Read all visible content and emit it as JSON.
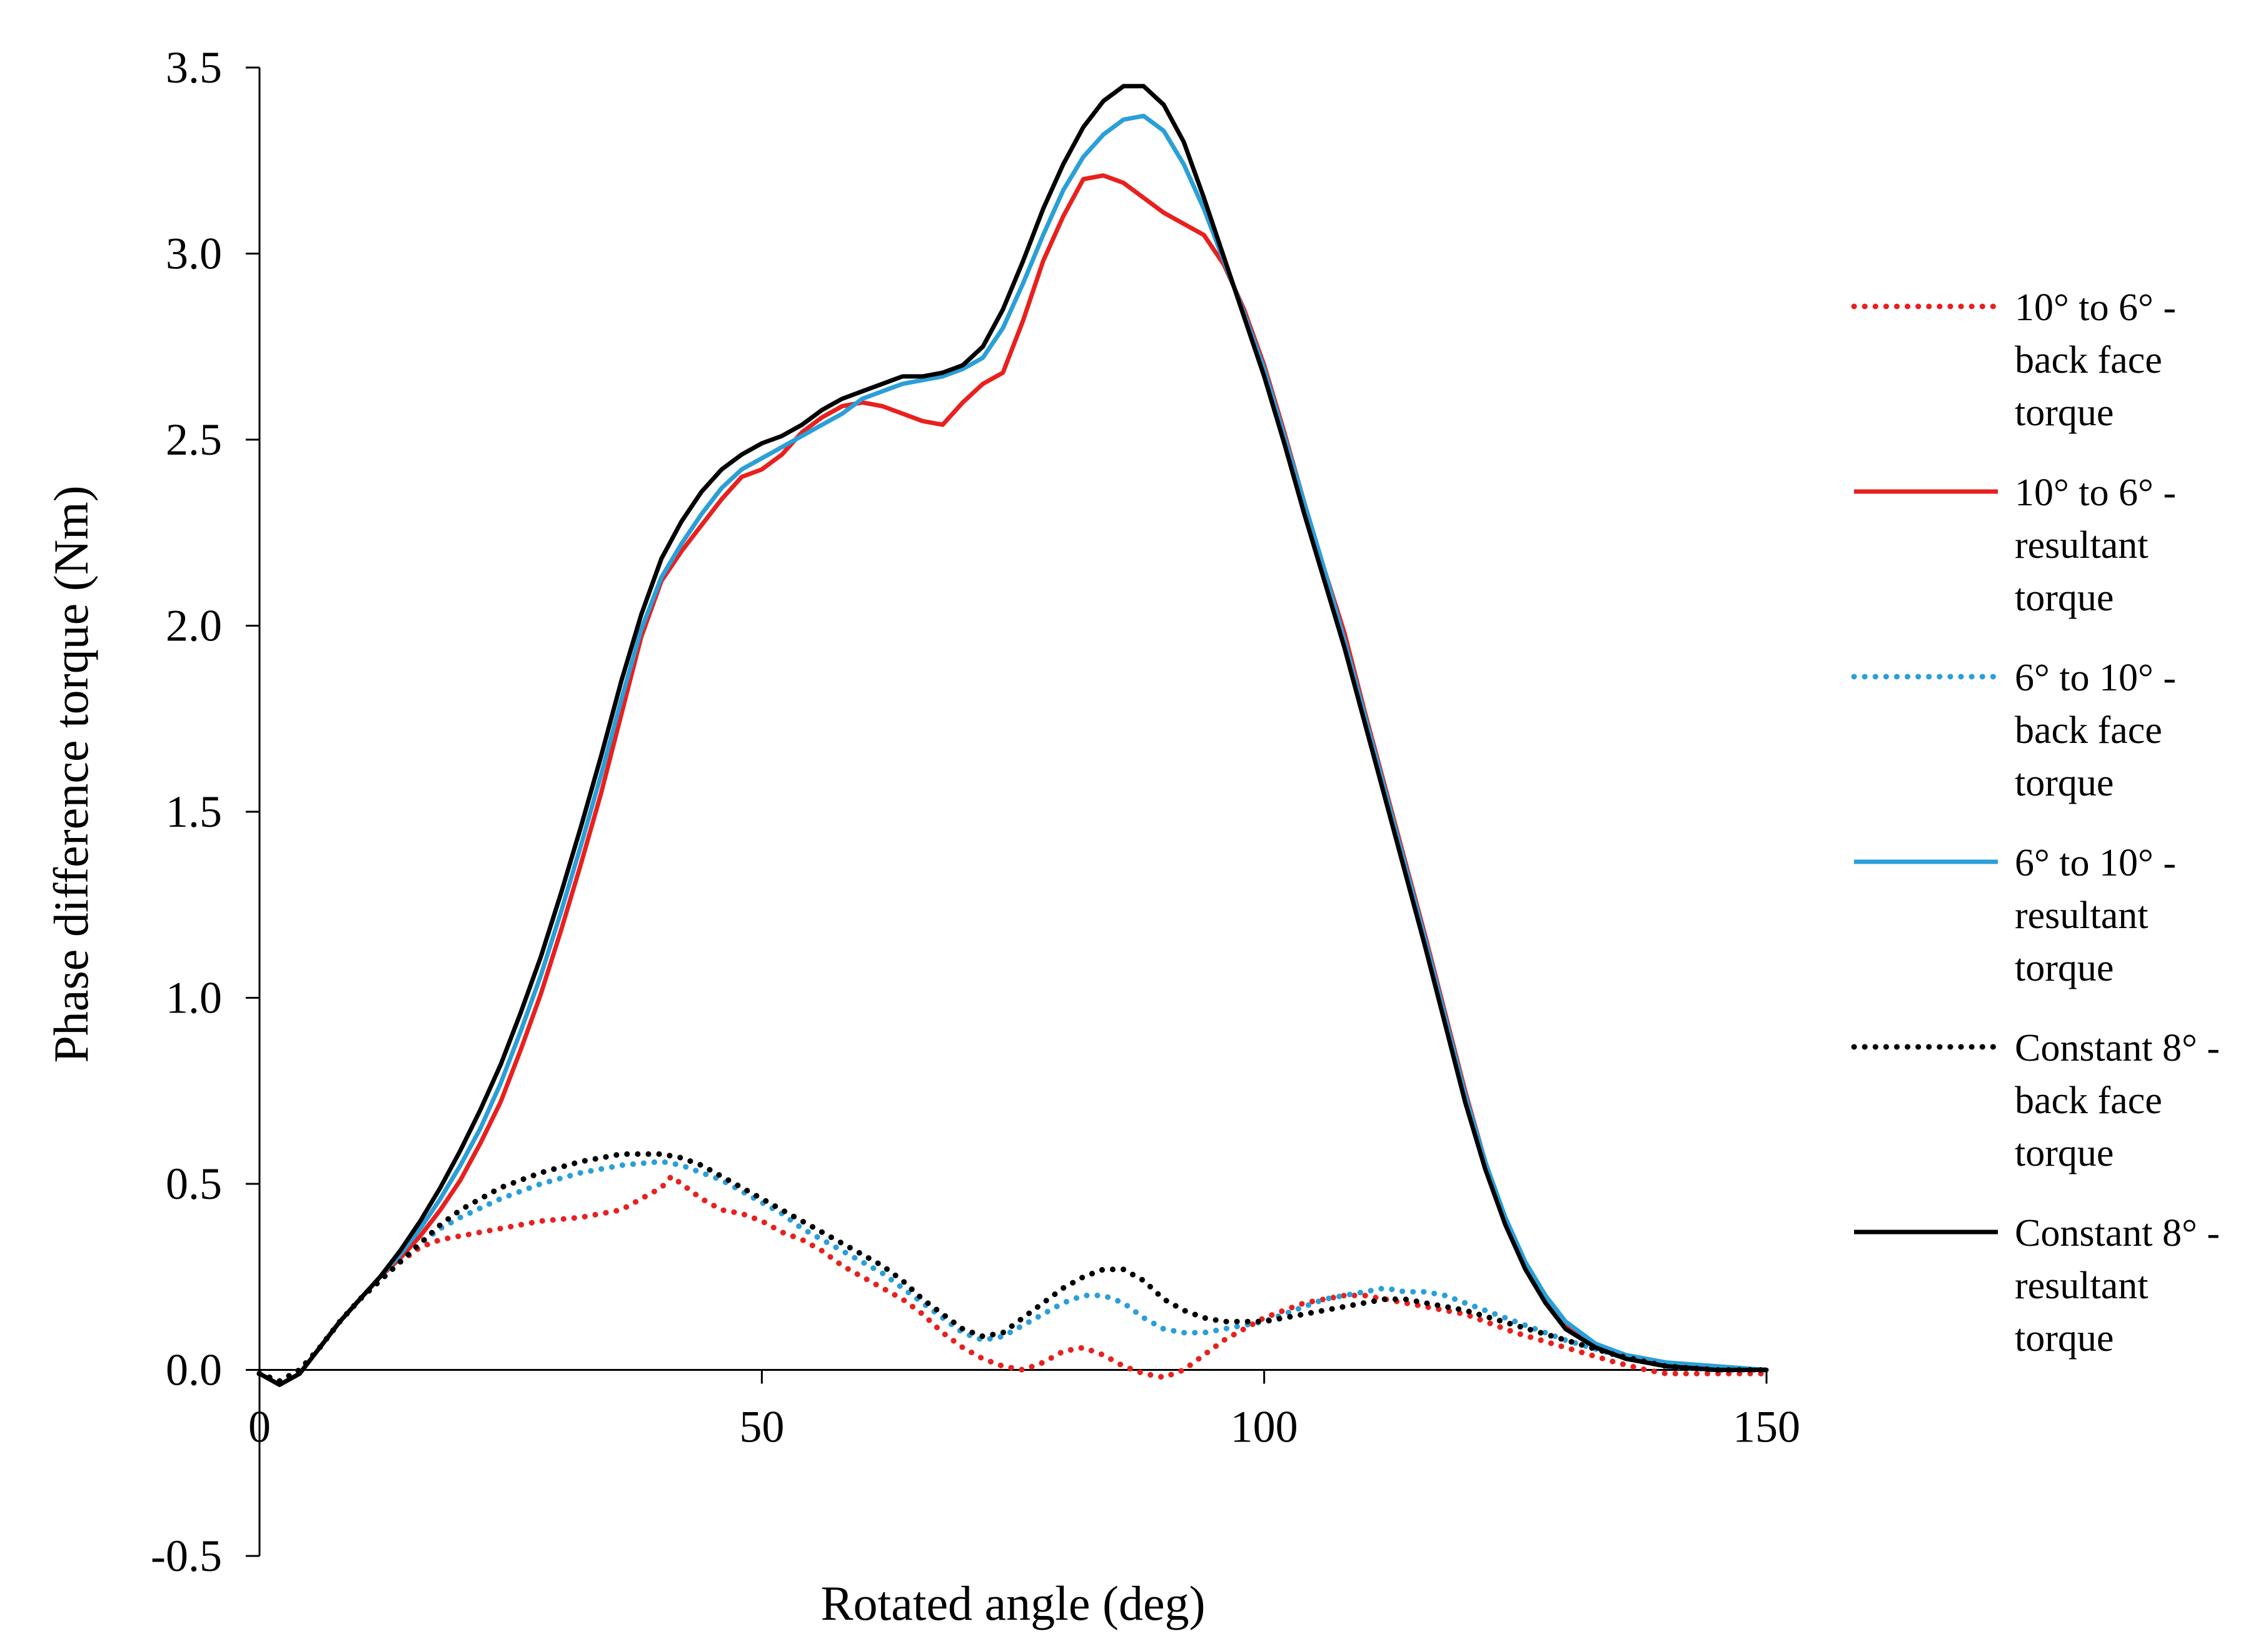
{
  "chart_data": {
    "type": "line",
    "title": "",
    "xlabel": "Rotated angle (deg)",
    "ylabel": "Phase difference torque (Nm)",
    "xlim": [
      0,
      150
    ],
    "ylim": [
      -0.5,
      3.5
    ],
    "xticks": [
      0,
      50,
      100,
      150
    ],
    "xtick_labels": [
      "0",
      "50",
      "100",
      "150"
    ],
    "yticks": [
      -0.5,
      0,
      0.5,
      1,
      1.5,
      2,
      2.5,
      3,
      3.5
    ],
    "ytick_labels": [
      "-0.5",
      "0.0",
      "0.5",
      "1.0",
      "1.5",
      "2.0",
      "2.5",
      "3.0",
      "3.5"
    ],
    "grid": false,
    "legend_position": "right",
    "series": [
      {
        "name": "10° to 6° - back face torque",
        "legend_lines": [
          "10° to 6° -",
          "back face",
          "torque"
        ],
        "color": "#e8201e",
        "style": "dotted",
        "x": [
          0,
          2,
          4,
          6,
          8,
          10,
          12,
          14,
          16,
          18,
          20,
          24,
          28,
          32,
          36,
          40,
          41,
          42,
          44,
          46,
          48,
          50,
          52,
          54,
          56,
          58,
          60,
          62,
          64,
          66,
          68,
          70,
          72,
          74,
          76,
          78,
          80,
          82,
          84,
          86,
          88,
          90,
          92,
          94,
          96,
          98,
          100,
          102,
          104,
          106,
          108,
          110,
          112,
          114,
          116,
          118,
          120,
          125,
          130,
          135,
          138,
          140,
          145,
          150
        ],
        "y": [
          -0.01,
          -0.03,
          0.0,
          0.06,
          0.13,
          0.19,
          0.24,
          0.29,
          0.33,
          0.35,
          0.36,
          0.38,
          0.4,
          0.41,
          0.43,
          0.49,
          0.52,
          0.5,
          0.46,
          0.43,
          0.42,
          0.4,
          0.37,
          0.35,
          0.32,
          0.28,
          0.25,
          0.22,
          0.19,
          0.15,
          0.1,
          0.06,
          0.03,
          0.01,
          0.0,
          0.02,
          0.05,
          0.06,
          0.04,
          0.01,
          -0.01,
          -0.02,
          0.0,
          0.04,
          0.08,
          0.11,
          0.14,
          0.16,
          0.18,
          0.19,
          0.2,
          0.2,
          0.19,
          0.18,
          0.17,
          0.16,
          0.15,
          0.1,
          0.06,
          0.02,
          0.0,
          -0.01,
          -0.01,
          -0.01
        ]
      },
      {
        "name": "10° to 6° - resultant torque",
        "legend_lines": [
          "10° to 6° -",
          "resultant",
          "torque"
        ],
        "color": "#e8201e",
        "style": "solid",
        "x": [
          0,
          2,
          4,
          6,
          8,
          10,
          12,
          14,
          16,
          18,
          20,
          22,
          24,
          26,
          28,
          30,
          32,
          34,
          36,
          38,
          40,
          42,
          44,
          46,
          48,
          50,
          52,
          54,
          56,
          58,
          60,
          62,
          64,
          66,
          68,
          70,
          72,
          74,
          76,
          78,
          80,
          82,
          84,
          86,
          88,
          90,
          92,
          94,
          96,
          98,
          100,
          102,
          104,
          106,
          108,
          110,
          112,
          114,
          116,
          118,
          120,
          122,
          124,
          126,
          128,
          130,
          133,
          136,
          140,
          145,
          150
        ],
        "y": [
          -0.01,
          -0.04,
          -0.01,
          0.06,
          0.13,
          0.19,
          0.25,
          0.3,
          0.36,
          0.43,
          0.51,
          0.61,
          0.72,
          0.86,
          1.01,
          1.18,
          1.36,
          1.55,
          1.76,
          1.97,
          2.12,
          2.2,
          2.27,
          2.34,
          2.4,
          2.42,
          2.46,
          2.52,
          2.56,
          2.59,
          2.6,
          2.59,
          2.57,
          2.55,
          2.54,
          2.6,
          2.65,
          2.68,
          2.82,
          2.98,
          3.1,
          3.2,
          3.21,
          3.19,
          3.15,
          3.11,
          3.08,
          3.05,
          2.97,
          2.85,
          2.7,
          2.52,
          2.33,
          2.15,
          1.98,
          1.77,
          1.57,
          1.37,
          1.17,
          0.96,
          0.75,
          0.56,
          0.4,
          0.28,
          0.19,
          0.12,
          0.06,
          0.03,
          0.01,
          0.0,
          0.0
        ]
      },
      {
        "name": "6° to 10° - back face torque",
        "legend_lines": [
          "6° to 10° -",
          "back face",
          "torque"
        ],
        "color": "#2a9fd8",
        "style": "dotted",
        "x": [
          0,
          2,
          4,
          6,
          8,
          10,
          12,
          14,
          16,
          18,
          20,
          24,
          28,
          32,
          36,
          40,
          42,
          44,
          46,
          48,
          50,
          52,
          54,
          56,
          58,
          60,
          62,
          64,
          66,
          68,
          70,
          72,
          74,
          76,
          78,
          80,
          82,
          84,
          86,
          88,
          90,
          92,
          94,
          96,
          98,
          100,
          102,
          104,
          106,
          108,
          110,
          112,
          114,
          116,
          118,
          120,
          125,
          130,
          135,
          140,
          145,
          150
        ],
        "y": [
          -0.01,
          -0.03,
          0.0,
          0.06,
          0.13,
          0.19,
          0.24,
          0.29,
          0.34,
          0.38,
          0.41,
          0.46,
          0.5,
          0.53,
          0.55,
          0.56,
          0.55,
          0.53,
          0.51,
          0.48,
          0.45,
          0.42,
          0.38,
          0.35,
          0.32,
          0.29,
          0.26,
          0.22,
          0.18,
          0.14,
          0.1,
          0.08,
          0.09,
          0.12,
          0.15,
          0.18,
          0.2,
          0.2,
          0.18,
          0.14,
          0.11,
          0.1,
          0.1,
          0.11,
          0.12,
          0.13,
          0.15,
          0.17,
          0.19,
          0.2,
          0.21,
          0.22,
          0.21,
          0.21,
          0.2,
          0.18,
          0.13,
          0.08,
          0.04,
          0.01,
          0.0,
          0.0
        ]
      },
      {
        "name": "6° to 10° - resultant torque",
        "legend_lines": [
          "6° to 10° -",
          "resultant",
          "torque"
        ],
        "color": "#2a9fd8",
        "style": "solid",
        "x": [
          0,
          2,
          4,
          6,
          8,
          10,
          12,
          14,
          16,
          18,
          20,
          22,
          24,
          26,
          28,
          30,
          32,
          34,
          36,
          38,
          40,
          42,
          44,
          46,
          48,
          50,
          52,
          54,
          56,
          58,
          60,
          62,
          64,
          66,
          68,
          70,
          72,
          74,
          76,
          78,
          80,
          82,
          84,
          86,
          88,
          90,
          92,
          94,
          96,
          98,
          100,
          102,
          104,
          106,
          108,
          110,
          112,
          114,
          116,
          118,
          120,
          122,
          124,
          126,
          128,
          130,
          133,
          136,
          140,
          145,
          150
        ],
        "y": [
          -0.01,
          -0.04,
          -0.01,
          0.06,
          0.13,
          0.19,
          0.25,
          0.31,
          0.38,
          0.46,
          0.55,
          0.65,
          0.77,
          0.91,
          1.06,
          1.23,
          1.41,
          1.6,
          1.8,
          1.99,
          2.13,
          2.22,
          2.3,
          2.37,
          2.42,
          2.45,
          2.48,
          2.51,
          2.54,
          2.57,
          2.61,
          2.63,
          2.65,
          2.66,
          2.67,
          2.69,
          2.72,
          2.8,
          2.92,
          3.05,
          3.17,
          3.26,
          3.32,
          3.36,
          3.37,
          3.33,
          3.24,
          3.12,
          2.98,
          2.84,
          2.69,
          2.51,
          2.33,
          2.15,
          1.96,
          1.76,
          1.56,
          1.36,
          1.16,
          0.95,
          0.74,
          0.56,
          0.41,
          0.29,
          0.2,
          0.13,
          0.07,
          0.04,
          0.02,
          0.01,
          0.0
        ]
      },
      {
        "name": "Constant 8° - back face torque",
        "legend_lines": [
          "Constant 8° -",
          "back face",
          "torque"
        ],
        "color": "#000000",
        "style": "dotted",
        "x": [
          0,
          2,
          4,
          6,
          8,
          10,
          12,
          14,
          16,
          18,
          20,
          24,
          28,
          32,
          36,
          40,
          42,
          44,
          46,
          48,
          50,
          52,
          54,
          56,
          58,
          60,
          62,
          64,
          66,
          68,
          70,
          72,
          74,
          76,
          78,
          80,
          82,
          84,
          86,
          88,
          90,
          92,
          94,
          96,
          98,
          100,
          102,
          104,
          106,
          108,
          110,
          112,
          114,
          116,
          118,
          120,
          125,
          130,
          135,
          140,
          145,
          150
        ],
        "y": [
          -0.01,
          -0.03,
          0.0,
          0.06,
          0.13,
          0.19,
          0.24,
          0.29,
          0.34,
          0.39,
          0.43,
          0.49,
          0.53,
          0.56,
          0.58,
          0.58,
          0.57,
          0.55,
          0.52,
          0.49,
          0.46,
          0.43,
          0.4,
          0.37,
          0.34,
          0.31,
          0.28,
          0.24,
          0.19,
          0.15,
          0.11,
          0.09,
          0.1,
          0.14,
          0.18,
          0.22,
          0.25,
          0.27,
          0.27,
          0.24,
          0.19,
          0.16,
          0.14,
          0.13,
          0.13,
          0.13,
          0.14,
          0.15,
          0.16,
          0.17,
          0.18,
          0.19,
          0.19,
          0.18,
          0.17,
          0.16,
          0.12,
          0.08,
          0.04,
          0.01,
          0.0,
          0.0
        ]
      },
      {
        "name": "Constant 8° - resultant torque",
        "legend_lines": [
          "Constant 8° -",
          "resultant",
          "torque"
        ],
        "color": "#000000",
        "style": "solid",
        "x": [
          0,
          2,
          4,
          6,
          8,
          10,
          12,
          14,
          16,
          18,
          20,
          22,
          24,
          26,
          28,
          30,
          32,
          34,
          36,
          38,
          40,
          42,
          44,
          46,
          48,
          50,
          52,
          54,
          56,
          58,
          60,
          62,
          64,
          66,
          68,
          70,
          72,
          74,
          76,
          78,
          80,
          82,
          84,
          86,
          88,
          90,
          92,
          94,
          96,
          98,
          100,
          102,
          104,
          106,
          108,
          110,
          112,
          114,
          116,
          118,
          120,
          122,
          124,
          126,
          128,
          130,
          133,
          136,
          140,
          145,
          150
        ],
        "y": [
          -0.01,
          -0.04,
          -0.01,
          0.06,
          0.13,
          0.19,
          0.25,
          0.32,
          0.4,
          0.49,
          0.59,
          0.7,
          0.82,
          0.96,
          1.11,
          1.28,
          1.46,
          1.65,
          1.85,
          2.03,
          2.18,
          2.28,
          2.36,
          2.42,
          2.46,
          2.49,
          2.51,
          2.54,
          2.58,
          2.61,
          2.63,
          2.65,
          2.67,
          2.67,
          2.68,
          2.7,
          2.75,
          2.85,
          2.98,
          3.12,
          3.24,
          3.34,
          3.41,
          3.45,
          3.45,
          3.4,
          3.3,
          3.15,
          2.99,
          2.83,
          2.67,
          2.49,
          2.3,
          2.12,
          1.94,
          1.74,
          1.54,
          1.34,
          1.14,
          0.93,
          0.72,
          0.54,
          0.39,
          0.27,
          0.18,
          0.11,
          0.06,
          0.03,
          0.01,
          0.0,
          0.0
        ]
      }
    ]
  }
}
